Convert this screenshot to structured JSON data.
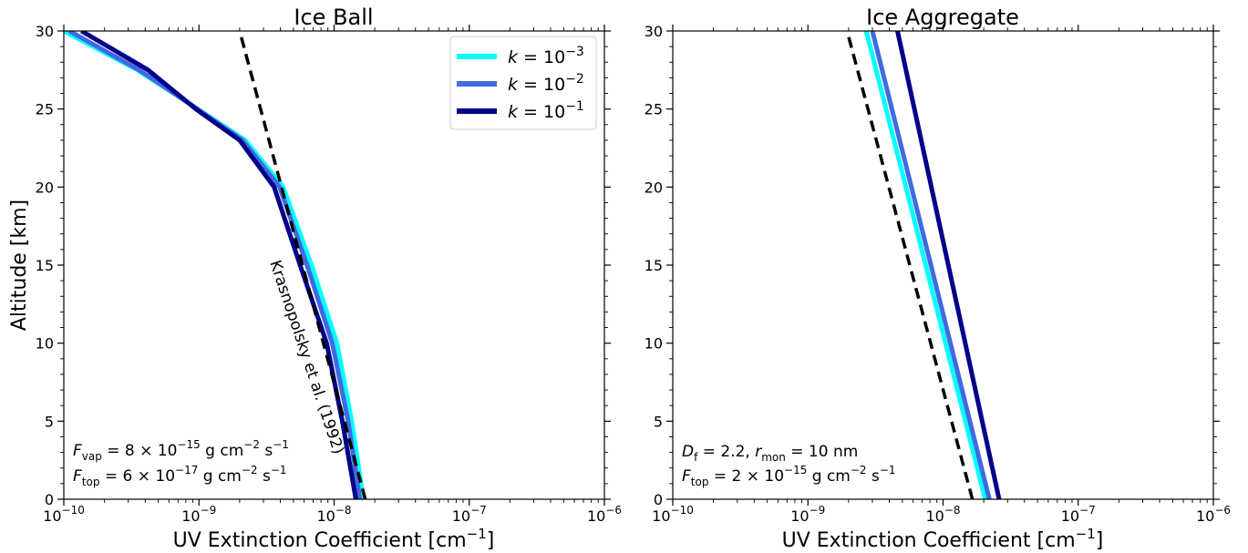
{
  "chart_data": [
    {
      "type": "line",
      "title": "Ice Ball",
      "xlabel": "UV Extinction Coefficient [cm",
      "xlabel_sup": "−1",
      "xlabel_end": "]",
      "ylabel": "Altitude [km]",
      "x_scale": "log",
      "xlim": [
        1e-10,
        1e-06
      ],
      "ylim": [
        0,
        30
      ],
      "x_tick_labels": [
        {
          "base": "10",
          "exp": "−10",
          "value": 1e-10
        },
        {
          "base": "10",
          "exp": "−9",
          "value": 1e-09
        },
        {
          "base": "10",
          "exp": "−8",
          "value": 1e-08
        },
        {
          "base": "10",
          "exp": "−7",
          "value": 1e-07
        },
        {
          "base": "10",
          "exp": "−6",
          "value": 1e-06
        }
      ],
      "y_tick_labels": [
        "0",
        "5",
        "10",
        "15",
        "20",
        "25",
        "30"
      ],
      "legend_position": "top-right",
      "series": [
        {
          "name": "k = 10^-3",
          "legend_k": "k",
          "legend_eq": " = 10",
          "legend_exp": "−3",
          "color": "#00ffff",
          "points": [
            [
              1.65e-08,
              0
            ],
            [
              1.35e-08,
              5
            ],
            [
              1.05e-08,
              10
            ],
            [
              6.8e-09,
              15
            ],
            [
              4.2e-09,
              20
            ],
            [
              2.2e-09,
              23
            ],
            [
              9e-10,
              25.2
            ],
            [
              3.5e-10,
              27.5
            ],
            [
              1e-10,
              30
            ]
          ]
        },
        {
          "name": "k = 10^-2",
          "legend_k": "k",
          "legend_eq": " = 10",
          "legend_exp": "−2",
          "color": "#4169e1",
          "points": [
            [
              1.55e-08,
              0
            ],
            [
              1.27e-08,
              5
            ],
            [
              9.7e-09,
              10
            ],
            [
              6.3e-09,
              15
            ],
            [
              3.95e-09,
              20
            ],
            [
              2.1e-09,
              23
            ],
            [
              9e-10,
              25.2
            ],
            [
              3.6e-10,
              27.5
            ],
            [
              1.1e-10,
              30
            ]
          ]
        },
        {
          "name": "k = 10^-1",
          "legend_k": "k",
          "legend_eq": " = 10",
          "legend_exp": "−1",
          "color": "#00008b",
          "points": [
            [
              1.45e-08,
              0
            ],
            [
              1.15e-08,
              5
            ],
            [
              8.8e-09,
              10
            ],
            [
              5.6e-09,
              15
            ],
            [
              3.6e-09,
              20
            ],
            [
              2e-09,
              23
            ],
            [
              9.5e-10,
              25
            ],
            [
              4.2e-10,
              27.5
            ],
            [
              1.35e-10,
              30
            ]
          ]
        }
      ],
      "reference_line": {
        "label": "Krasnopolsky et al. (1992)",
        "color": "#000000",
        "points": [
          [
            1.7e-08,
            0
          ],
          [
            2e-09,
            30
          ]
        ]
      },
      "annotations": [
        {
          "var": "F",
          "sub": "vap",
          "text": " = 8 × 10",
          "exp": "−15",
          "unit": " g cm",
          "unit_exp1": "−2",
          "unit2": " s",
          "unit_exp2": "−1"
        },
        {
          "var": "F",
          "sub": "top",
          "text": " = 6 × 10",
          "exp": "−17",
          "unit": " g cm",
          "unit_exp1": "−2",
          "unit2": " s",
          "unit_exp2": "−1"
        }
      ]
    },
    {
      "type": "line",
      "title": "Ice Aggregate",
      "xlabel": "UV Extinction Coefficient [cm",
      "xlabel_sup": "−1",
      "xlabel_end": "]",
      "x_scale": "log",
      "xlim": [
        1e-10,
        1e-06
      ],
      "ylim": [
        0,
        30
      ],
      "x_tick_labels": [
        {
          "base": "10",
          "exp": "−10",
          "value": 1e-10
        },
        {
          "base": "10",
          "exp": "−9",
          "value": 1e-09
        },
        {
          "base": "10",
          "exp": "−8",
          "value": 1e-08
        },
        {
          "base": "10",
          "exp": "−7",
          "value": 1e-07
        },
        {
          "base": "10",
          "exp": "−6",
          "value": 1e-06
        }
      ],
      "y_tick_labels": [
        "0",
        "5",
        "10",
        "15",
        "20",
        "25",
        "30"
      ],
      "series": [
        {
          "name": "k = 10^-3",
          "color": "#00ffff",
          "points": [
            [
              2.05e-08,
              0
            ],
            [
              2.7e-09,
              30
            ]
          ]
        },
        {
          "name": "k = 10^-2",
          "color": "#4169e1",
          "points": [
            [
              2.2e-08,
              0
            ],
            [
              3e-09,
              30
            ]
          ]
        },
        {
          "name": "k = 10^-1",
          "color": "#00008b",
          "points": [
            [
              2.6e-08,
              0
            ],
            [
              4.6e-09,
              30
            ]
          ]
        }
      ],
      "reference_line": {
        "color": "#000000",
        "points": [
          [
            1.65e-08,
            0
          ],
          [
            1.95e-09,
            30
          ]
        ]
      },
      "annotations": [
        {
          "var": "D",
          "sub": "f",
          "text": " = 2.2, ",
          "var2": "r",
          "sub2": "mon",
          "text2": " = 10 nm"
        },
        {
          "var": "F",
          "sub": "top",
          "text": " = 2 × 10",
          "exp": "−15",
          "unit": " g cm",
          "unit_exp1": "−2",
          "unit2": " s",
          "unit_exp2": "−1"
        }
      ]
    }
  ]
}
